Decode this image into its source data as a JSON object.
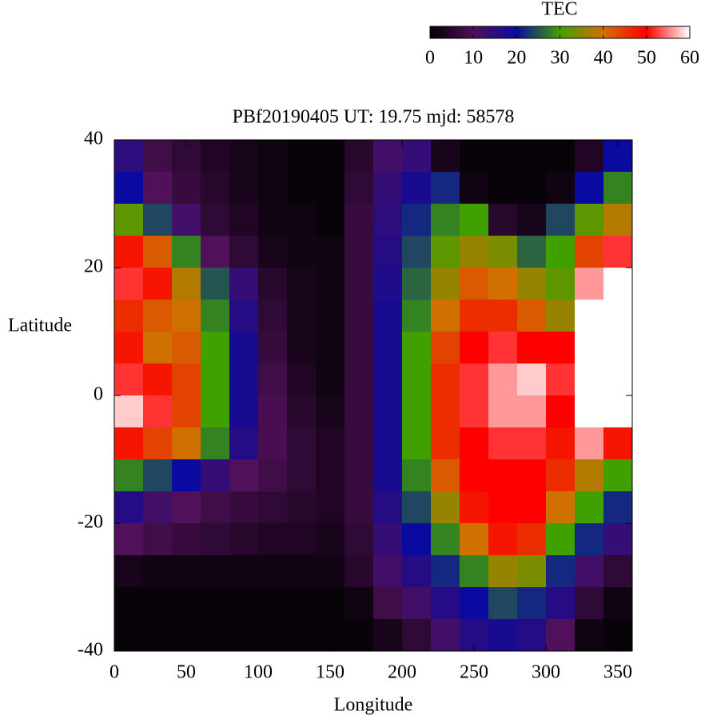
{
  "chart_data": {
    "type": "heatmap",
    "title": "PBf20190405  UT: 19.75  mjd: 58578",
    "xlabel": "Longitude",
    "ylabel": "Latitude",
    "x": [
      10,
      30,
      50,
      70,
      90,
      110,
      130,
      150,
      170,
      190,
      210,
      230,
      250,
      270,
      290,
      310,
      330,
      350
    ],
    "y": [
      37.5,
      32.5,
      27.5,
      22.5,
      17.5,
      12.5,
      7.5,
      2.5,
      -2.5,
      -7.5,
      -12.5,
      -17.5,
      -22.5,
      -27.5,
      -32.5,
      -37.5
    ],
    "z": [
      [
        15,
        8,
        6,
        4,
        3,
        2,
        1,
        1,
        5,
        12,
        14,
        3,
        1,
        1,
        1,
        1,
        4,
        20
      ],
      [
        20,
        10,
        7,
        5,
        3,
        2,
        1,
        1,
        6,
        14,
        18,
        22,
        2,
        1,
        1,
        2,
        20,
        28
      ],
      [
        32,
        24,
        12,
        6,
        4,
        2,
        2,
        1,
        7,
        15,
        22,
        28,
        30,
        5,
        3,
        24,
        32,
        38
      ],
      [
        48,
        42,
        28,
        10,
        6,
        3,
        2,
        2,
        7,
        16,
        24,
        32,
        36,
        34,
        26,
        30,
        44,
        52
      ],
      [
        52,
        48,
        38,
        25,
        14,
        5,
        3,
        2,
        7,
        17,
        26,
        36,
        42,
        40,
        36,
        32,
        56,
        60
      ],
      [
        46,
        42,
        40,
        28,
        16,
        6,
        3,
        2,
        7,
        18,
        28,
        40,
        46,
        46,
        42,
        36,
        60,
        60
      ],
      [
        48,
        40,
        42,
        30,
        18,
        7,
        3,
        2,
        7,
        18,
        30,
        44,
        50,
        52,
        50,
        50,
        60,
        60
      ],
      [
        52,
        48,
        44,
        30,
        18,
        8,
        4,
        2,
        7,
        18,
        30,
        46,
        52,
        56,
        58,
        52,
        60,
        60
      ],
      [
        58,
        52,
        44,
        30,
        18,
        9,
        5,
        3,
        7,
        18,
        30,
        46,
        52,
        56,
        56,
        50,
        60,
        60
      ],
      [
        48,
        44,
        40,
        28,
        16,
        9,
        6,
        4,
        7,
        18,
        30,
        46,
        50,
        52,
        52,
        48,
        56,
        48
      ],
      [
        28,
        24,
        20,
        14,
        10,
        8,
        6,
        4,
        7,
        18,
        28,
        42,
        50,
        50,
        50,
        46,
        38,
        30
      ],
      [
        16,
        12,
        10,
        8,
        7,
        6,
        5,
        4,
        7,
        16,
        24,
        36,
        48,
        50,
        50,
        40,
        30,
        22
      ],
      [
        10,
        8,
        7,
        6,
        5,
        4,
        4,
        3,
        6,
        14,
        20,
        28,
        40,
        48,
        46,
        30,
        22,
        14
      ],
      [
        3,
        2,
        2,
        2,
        2,
        2,
        2,
        2,
        5,
        12,
        16,
        22,
        28,
        36,
        34,
        22,
        12,
        6
      ],
      [
        1,
        1,
        1,
        1,
        1,
        1,
        1,
        1,
        2,
        8,
        12,
        16,
        20,
        24,
        22,
        16,
        6,
        2
      ],
      [
        1,
        1,
        1,
        1,
        1,
        1,
        1,
        1,
        1,
        3,
        6,
        12,
        16,
        18,
        16,
        10,
        2,
        1
      ]
    ],
    "xlim": [
      0,
      360
    ],
    "xticks": [
      0,
      50,
      100,
      150,
      200,
      250,
      300,
      350
    ],
    "ylim": [
      -40,
      40
    ],
    "yticks": [
      -40,
      -20,
      0,
      20,
      40
    ],
    "colorbar": {
      "label": "TEC",
      "lim": [
        0,
        60
      ],
      "ticks": [
        0,
        10,
        20,
        30,
        40,
        50,
        60
      ],
      "colormap": [
        "#000000",
        "#50105a",
        "#0a0aa0",
        "#40a000",
        "#d07000",
        "#ff0000",
        "#ffffff"
      ]
    }
  }
}
